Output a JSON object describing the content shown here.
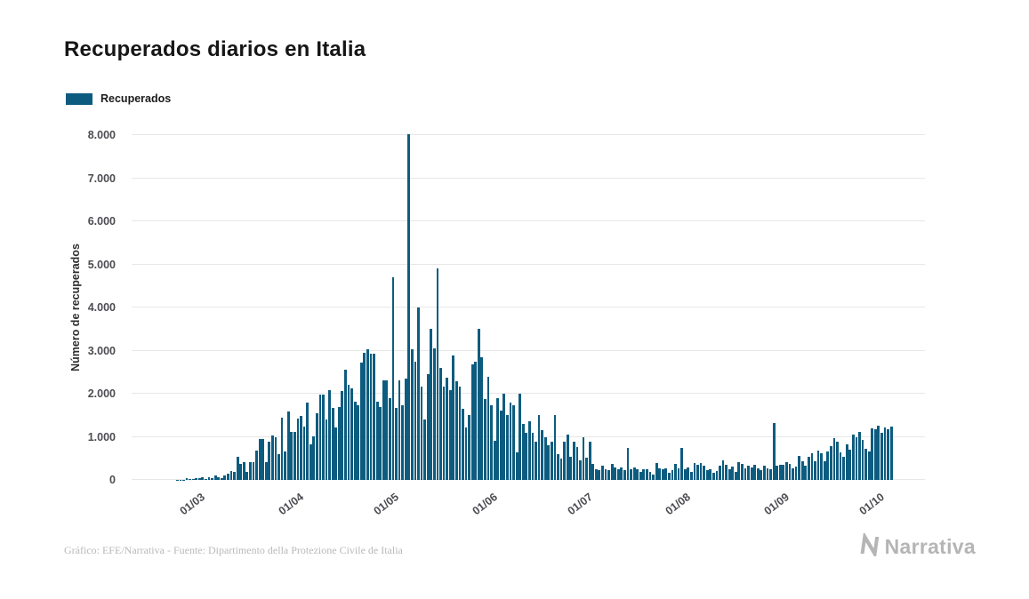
{
  "page": {
    "title": "Recuperados diarios en Italia",
    "footer_credit": "Gráfico: EFE/Narrativa - Fuente: Dipartimento della Protezione Civile de Italia",
    "brand": "Narrativa"
  },
  "legend": {
    "label": "Recuperados",
    "color": "#0d5c7f"
  },
  "chart_data": {
    "type": "bar",
    "title": "Recuperados diarios en Italia",
    "series_name": "Recuperados",
    "xlabel": "",
    "ylabel": "Número de recuperados",
    "ylim": [
      0,
      8000
    ],
    "grid": true,
    "legend_position": "top-left",
    "bar_color": "#0d5c7f",
    "x_unit": "daily bars, one per day from late February to early October",
    "yticks": [
      {
        "value": 0,
        "label": "0"
      },
      {
        "value": 1000,
        "label": "1.000"
      },
      {
        "value": 2000,
        "label": "2.000"
      },
      {
        "value": 3000,
        "label": "3.000"
      },
      {
        "value": 4000,
        "label": "4.000"
      },
      {
        "value": 5000,
        "label": "5.000"
      },
      {
        "value": 6000,
        "label": "6.000"
      },
      {
        "value": 7000,
        "label": "7.000"
      },
      {
        "value": 8000,
        "label": "8.000"
      }
    ],
    "xticks": [
      {
        "label": "01/03",
        "day_index": 11
      },
      {
        "label": "01/04",
        "day_index": 42
      },
      {
        "label": "01/05",
        "day_index": 72
      },
      {
        "label": "01/06",
        "day_index": 103
      },
      {
        "label": "01/07",
        "day_index": 133
      },
      {
        "label": "01/08",
        "day_index": 164
      },
      {
        "label": "01/09",
        "day_index": 195
      },
      {
        "label": "01/10",
        "day_index": 225
      }
    ],
    "values": [
      0,
      0,
      1,
      1,
      2,
      3,
      2,
      45,
      15,
      30,
      40,
      45,
      60,
      20,
      65,
      40,
      110,
      70,
      35,
      100,
      140,
      215,
      180,
      530,
      370,
      415,
      190,
      415,
      420,
      690,
      945,
      950,
      410,
      895,
      1035,
      1000,
      590,
      1435,
      650,
      1590,
      1110,
      1120,
      1430,
      1480,
      1240,
      1790,
      820,
      1020,
      1555,
      1980,
      1985,
      1395,
      2080,
      1675,
      1225,
      1695,
      2070,
      2565,
      2200,
      2130,
      1820,
      1740,
      2725,
      2940,
      3030,
      2920,
      2925,
      1810,
      1695,
      2315,
      2310,
      1900,
      4695,
      1665,
      2305,
      1740,
      2350,
      8015,
      3030,
      2745,
      4010,
      2155,
      1400,
      2450,
      3500,
      3050,
      4915,
      2605,
      2160,
      2365,
      2075,
      2880,
      2280,
      2160,
      1640,
      1210,
      1500,
      2675,
      2750,
      3505,
      2855,
      1875,
      2400,
      1740,
      900,
      1890,
      1600,
      2000,
      1500,
      1800,
      1740,
      640,
      2010,
      1290,
      1090,
      1360,
      1090,
      890,
      1500,
      1160,
      1000,
      810,
      890,
      1515,
      600,
      500,
      890,
      1050,
      530,
      890,
      760,
      460,
      990,
      510,
      890,
      370,
      250,
      230,
      340,
      255,
      230,
      370,
      290,
      250,
      295,
      225,
      740,
      245,
      295,
      255,
      190,
      240,
      250,
      190,
      130,
      390,
      275,
      250,
      275,
      170,
      225,
      380,
      275,
      750,
      240,
      295,
      190,
      385,
      345,
      385,
      340,
      235,
      255,
      165,
      215,
      320,
      455,
      360,
      240,
      305,
      190,
      403,
      364,
      275,
      340,
      280,
      347,
      275,
      225,
      340,
      270,
      245,
      1325,
      320,
      350,
      355,
      408,
      380,
      276,
      316,
      567,
      428,
      335,
      530,
      625,
      434,
      689,
      610,
      440,
      665,
      794,
      975,
      891,
      640,
      540,
      816,
      695,
      1058,
      985,
      1107,
      927,
      713,
      661,
      1196,
      1170,
      1253,
      1101,
      1210,
      1180,
      1230
    ]
  }
}
